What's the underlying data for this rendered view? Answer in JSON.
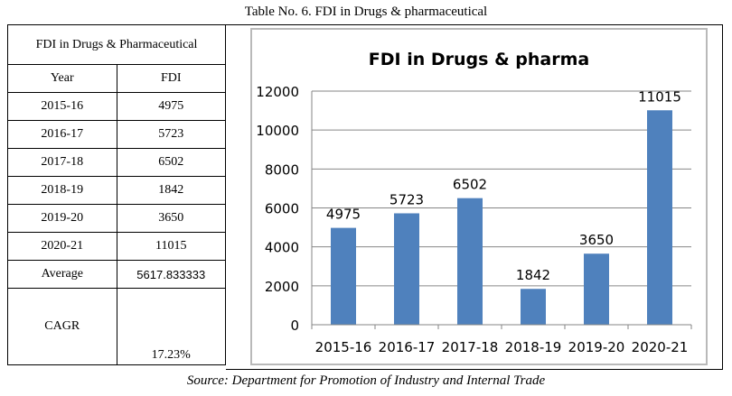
{
  "caption": "Table No. 6. FDI in Drugs & pharmaceutical",
  "source": "Source: Department for Promotion of Industry and Internal Trade",
  "table": {
    "title": "FDI in Drugs & Pharmaceutical",
    "headers": [
      "Year",
      "FDI"
    ],
    "rows": [
      {
        "year": "2015-16",
        "fdi": "4975"
      },
      {
        "year": "2016-17",
        "fdi": "5723"
      },
      {
        "year": "2017-18",
        "fdi": "6502"
      },
      {
        "year": "2018-19",
        "fdi": "1842"
      },
      {
        "year": "2019-20",
        "fdi": "3650"
      },
      {
        "year": "2020-21",
        "fdi": "11015"
      }
    ],
    "average_label": "Average",
    "average_value": "5617.833333",
    "cagr_label": "CAGR",
    "cagr_value": "17.23%"
  },
  "chart_data": {
    "type": "bar",
    "title": "FDI in Drugs & pharma",
    "categories": [
      "2015-16",
      "2016-17",
      "2017-18",
      "2018-19",
      "2019-20",
      "2020-21"
    ],
    "values": [
      4975,
      5723,
      6502,
      1842,
      3650,
      11015
    ],
    "data_labels": [
      "4975",
      "5723",
      "6502",
      "1842",
      "3650",
      "11015"
    ],
    "yticks": [
      "0",
      "2000",
      "4000",
      "6000",
      "8000",
      "10000",
      "12000"
    ],
    "ylim": [
      0,
      12000
    ],
    "grid": true,
    "bar_color": "#4f81bd",
    "grid_color": "#868686"
  }
}
